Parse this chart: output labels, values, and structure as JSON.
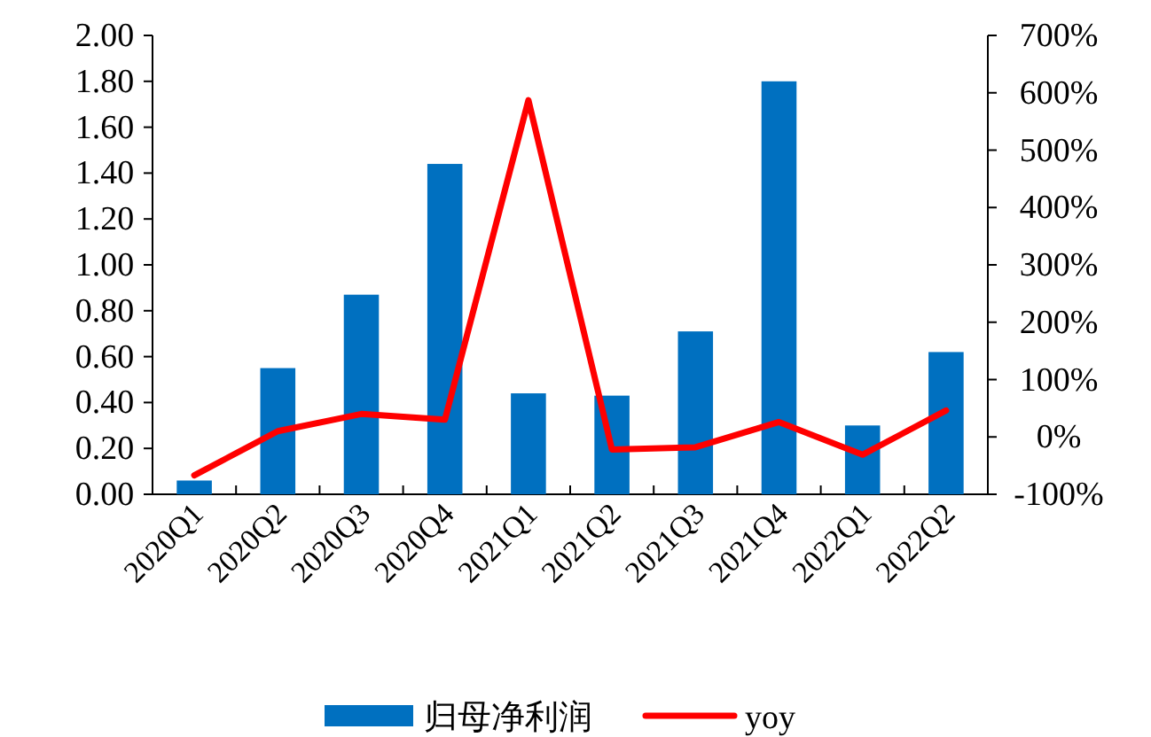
{
  "chart_data": {
    "type": "bar",
    "categories": [
      "2020Q1",
      "2020Q2",
      "2020Q3",
      "2020Q4",
      "2021Q1",
      "2021Q2",
      "2021Q3",
      "2021Q4",
      "2022Q1",
      "2022Q2"
    ],
    "series": [
      {
        "name": "归母净利润",
        "color": "#0070c0",
        "values": [
          0.06,
          0.55,
          0.87,
          1.44,
          0.44,
          0.43,
          0.71,
          1.8,
          0.3,
          0.62
        ]
      },
      {
        "name": "yoy",
        "type": "line",
        "axis": "y2",
        "color": "#ff0000",
        "values": [
          -67,
          10,
          40,
          30,
          587,
          -22,
          -18,
          26,
          -31,
          46
        ]
      }
    ],
    "ylim": [
      0,
      2
    ],
    "yticks": [
      {
        "value": 0,
        "label": "0.00"
      },
      {
        "value": 0.2,
        "label": "0.20"
      },
      {
        "value": 0.4,
        "label": "0.40"
      },
      {
        "value": 0.6,
        "label": "0.60"
      },
      {
        "value": 0.8,
        "label": "0.80"
      },
      {
        "value": 1,
        "label": "1.00"
      },
      {
        "value": 1.2,
        "label": "1.20"
      },
      {
        "value": 1.4,
        "label": "1.40"
      },
      {
        "value": 1.6,
        "label": "1.60"
      },
      {
        "value": 1.8,
        "label": "1.80"
      },
      {
        "value": 2,
        "label": "2.00"
      }
    ],
    "y2lim": [
      -100,
      700
    ],
    "y2ticks": [
      {
        "value": -100,
        "label": "-100%"
      },
      {
        "value": 0,
        "label": "0%"
      },
      {
        "value": 100,
        "label": "100%"
      },
      {
        "value": 200,
        "label": "200%"
      },
      {
        "value": 300,
        "label": "300%"
      },
      {
        "value": 400,
        "label": "400%"
      },
      {
        "value": 500,
        "label": "500%"
      },
      {
        "value": 600,
        "label": "600%"
      },
      {
        "value": 700,
        "label": "700%"
      }
    ],
    "legend": "bottom"
  }
}
